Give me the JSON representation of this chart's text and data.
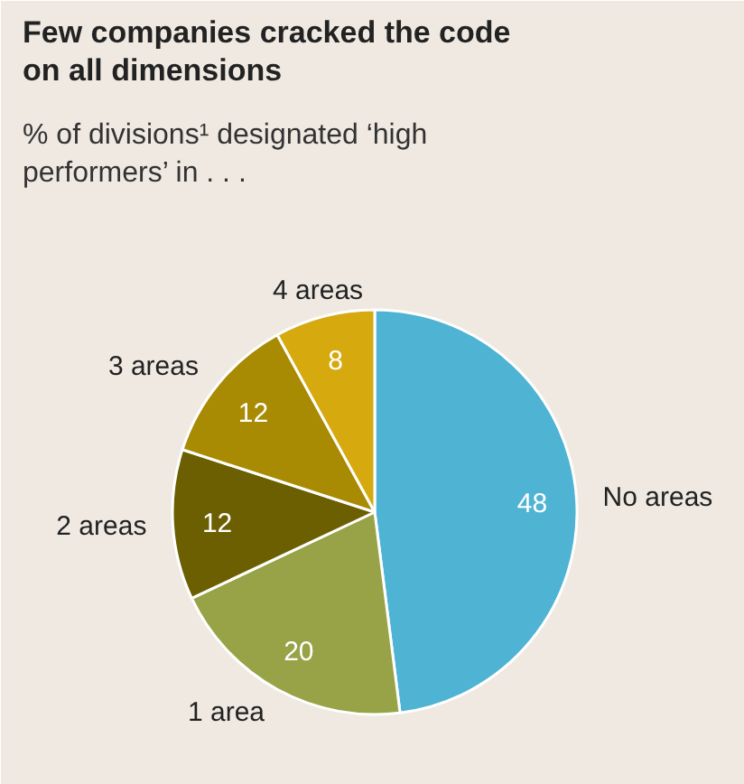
{
  "chart_data": {
    "type": "pie",
    "title": "Few companies cracked the code on all dimensions",
    "subtitle": "% of divisions¹ designated ‘high performers’ in . . .",
    "categories": [
      "No areas",
      "1 area",
      "2 areas",
      "3 areas",
      "4 areas"
    ],
    "values": [
      48,
      20,
      12,
      12,
      8
    ],
    "colors": [
      "#4fb3d3",
      "#97a346",
      "#6b5f02",
      "#a88a03",
      "#d6a90f"
    ],
    "data_labels": true
  }
}
